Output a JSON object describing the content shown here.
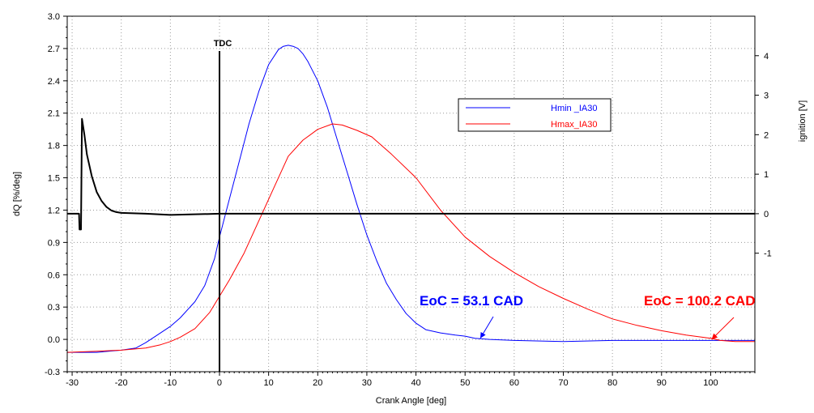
{
  "chart_data": {
    "type": "line",
    "xlabel": "Crank Angle [deg]",
    "ylabel": "dQ [%/deg]",
    "y2label": "ignition [V]",
    "xlim": [
      -31,
      109
    ],
    "ylim": [
      -0.3,
      3.0
    ],
    "y2lim": [
      -4.0,
      5.0
    ],
    "x_ticks": [
      -30,
      -20,
      -10,
      0,
      10,
      20,
      30,
      40,
      50,
      60,
      70,
      80,
      90,
      100
    ],
    "y_ticks": [
      -0.3,
      0.0,
      0.3,
      0.6,
      0.9,
      1.2,
      1.5,
      1.8,
      2.1,
      2.4,
      2.7,
      3.0
    ],
    "y_tick_labels": [
      "-0.3",
      "0.0",
      "0.3",
      "0.6",
      "0.9",
      "1.2",
      "1.5",
      "1.8",
      "2.1",
      "2.4",
      "2.7",
      "3.0"
    ],
    "y2_ticks": [
      -1,
      0,
      1,
      2,
      3,
      4
    ],
    "grid": true,
    "legend_position": "upper-right",
    "series": [
      {
        "name": "Hmin _IA30",
        "color": "#0000ff",
        "x": [
          -31,
          -25,
          -20,
          -17,
          -15,
          -13,
          -10,
          -8,
          -5,
          -3,
          -1,
          0,
          2,
          4,
          6,
          8,
          10,
          12,
          13,
          14,
          15,
          16,
          17,
          18,
          20,
          22,
          24,
          26,
          28,
          30,
          32,
          34,
          36,
          38,
          40,
          42,
          45,
          48,
          50,
          52,
          55,
          60,
          70,
          80,
          90,
          100,
          109
        ],
        "y": [
          -0.12,
          -0.12,
          -0.1,
          -0.08,
          -0.03,
          0.03,
          0.12,
          0.2,
          0.35,
          0.5,
          0.75,
          0.95,
          1.3,
          1.65,
          2.0,
          2.3,
          2.55,
          2.69,
          2.72,
          2.73,
          2.72,
          2.7,
          2.65,
          2.58,
          2.4,
          2.15,
          1.85,
          1.55,
          1.25,
          0.97,
          0.73,
          0.52,
          0.37,
          0.24,
          0.15,
          0.09,
          0.06,
          0.04,
          0.03,
          0.01,
          0.0,
          -0.01,
          -0.02,
          -0.01,
          -0.01,
          -0.01,
          -0.01
        ]
      },
      {
        "name": "Hmax_IA30",
        "color": "#ff0000",
        "x": [
          -31,
          -25,
          -20,
          -15,
          -12,
          -10,
          -8,
          -5,
          -2,
          0,
          2,
          5,
          8,
          11,
          14,
          17,
          20,
          23,
          25,
          28,
          31,
          35,
          40,
          45,
          50,
          55,
          60,
          65,
          70,
          75,
          80,
          85,
          90,
          95,
          100,
          102,
          105,
          109
        ],
        "y": [
          -0.12,
          -0.11,
          -0.1,
          -0.08,
          -0.05,
          -0.02,
          0.02,
          0.1,
          0.25,
          0.4,
          0.55,
          0.8,
          1.1,
          1.4,
          1.7,
          1.85,
          1.95,
          2.0,
          1.99,
          1.94,
          1.88,
          1.72,
          1.5,
          1.2,
          0.95,
          0.77,
          0.62,
          0.49,
          0.38,
          0.28,
          0.19,
          0.13,
          0.08,
          0.04,
          0.01,
          -0.01,
          -0.02,
          -0.02
        ]
      },
      {
        "name": "ignition",
        "color": "#000000",
        "axis": "right",
        "x": [
          -31,
          -28.6,
          -28.5,
          -28.2,
          -28.0,
          -27.5,
          -27.0,
          -26.0,
          -25.0,
          -24.0,
          -23.0,
          -22.0,
          -21.0,
          -20.0,
          -15,
          -10,
          0,
          10,
          20,
          40,
          60,
          80,
          100,
          109
        ],
        "y": [
          0.0,
          0.0,
          -0.4,
          -0.4,
          2.4,
          2.0,
          1.5,
          0.95,
          0.55,
          0.32,
          0.17,
          0.08,
          0.04,
          0.02,
          0.0,
          -0.03,
          0.0,
          0.0,
          0.0,
          0.0,
          0.0,
          0.0,
          0.0,
          0.0
        ]
      }
    ],
    "annotations": {
      "tdc": {
        "text": "TDC",
        "x": 0
      },
      "eoc_blue": {
        "text": "EoC = 53.1 CAD",
        "color": "#0000ff",
        "x": 53.1,
        "y": 0.01
      },
      "eoc_red": {
        "text": "EoC = 100.2 CAD",
        "color": "#ff0000",
        "x": 100.2,
        "y": 0.0
      }
    }
  }
}
